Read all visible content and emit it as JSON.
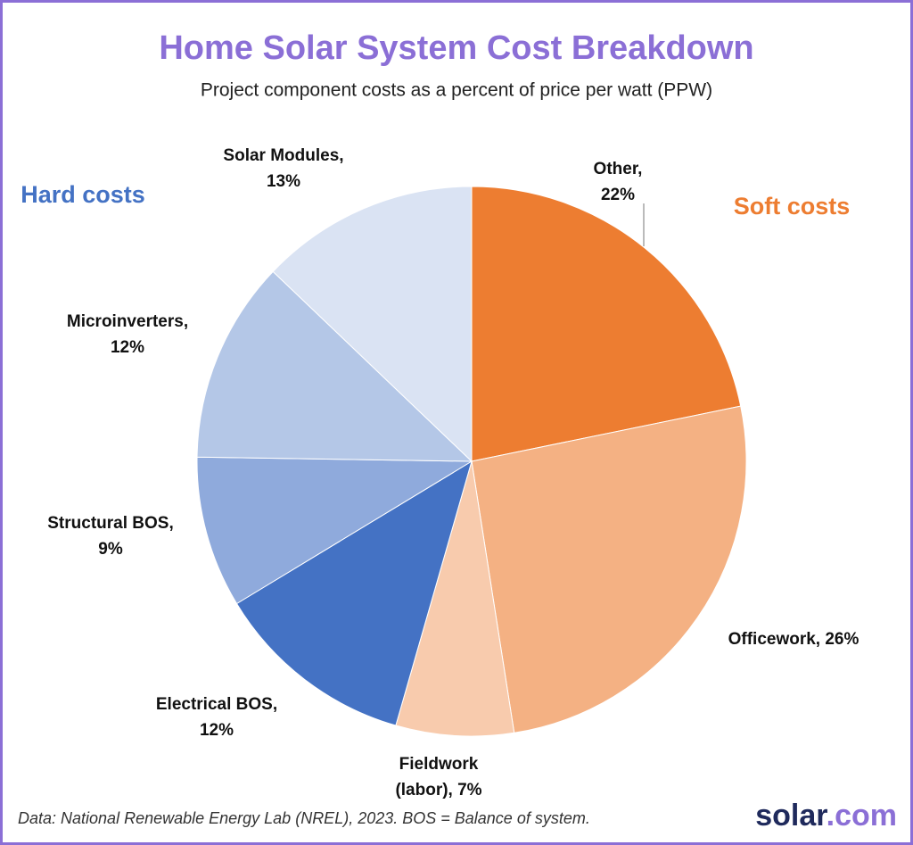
{
  "chart_data": {
    "type": "pie",
    "title": "Home Solar System Cost Breakdown",
    "subtitle": "Project component costs as a percent of price per watt (PPW)",
    "labels": [
      [
        "Other,",
        "22%"
      ],
      [
        "Officework, 26%"
      ],
      [
        "Fieldwork",
        "(labor), 7%"
      ],
      [
        "Electrical BOS,",
        "12%"
      ],
      [
        "Structural BOS,",
        "9%"
      ],
      [
        "Microinverters,",
        "12%"
      ],
      [
        "Solar Modules,",
        "13%"
      ]
    ],
    "values": [
      22,
      26,
      7,
      12,
      9,
      12,
      13
    ],
    "colors": [
      "#ed7d31",
      "#f4b183",
      "#f8cbad",
      "#4472c4",
      "#8faadc",
      "#b4c7e7",
      "#dae3f3"
    ],
    "annotations": {
      "hard": "Hard costs",
      "soft": "Soft costs"
    },
    "source": "Data: National Renewable Energy Lab (NREL), 2023. BOS = Balance of system.",
    "logo": {
      "main": "solar",
      "suffix": ".com"
    }
  }
}
